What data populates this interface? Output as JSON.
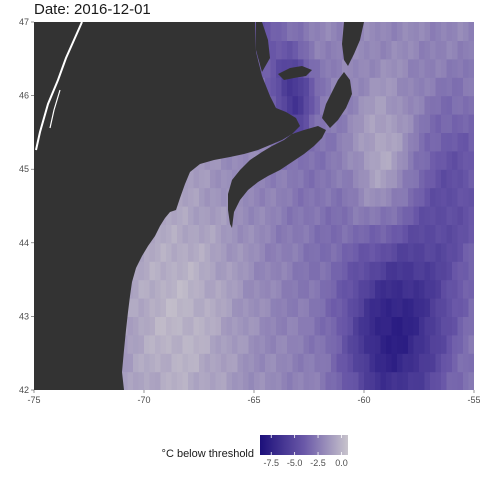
{
  "title": "Date: 2016-12-01",
  "legend": {
    "title": "°C below threshold",
    "ticks": [
      "-7.5",
      "-5.0",
      "-2.5",
      "0.0"
    ],
    "tick_values": [
      -7.5,
      -5.0,
      -2.5,
      0.0
    ],
    "range": [
      -8.7,
      0.7
    ],
    "colors": {
      "low": "#1c0f7a",
      "mid": "#6a58a8",
      "high": "#c8c4cc"
    }
  },
  "colors": {
    "land": "#333333",
    "water_gap": "#ffffff",
    "nodata": "#eeeeee"
  },
  "chart_data": {
    "type": "heatmap",
    "title": "Date: 2016-12-01",
    "xlabel": "",
    "ylabel": "",
    "xlim": [
      -75,
      -55
    ],
    "ylim": [
      42,
      47
    ],
    "x_ticks": [
      "-75",
      "-70",
      "-65",
      "-60",
      "-55"
    ],
    "x_tick_values": [
      -75,
      -70,
      -65,
      -60,
      -55
    ],
    "y_ticks": [
      "42",
      "43",
      "44",
      "45",
      "46",
      "47"
    ],
    "y_tick_values": [
      42,
      43,
      44,
      45,
      46,
      47
    ],
    "value_label": "°C below threshold",
    "grid_resolution_deg": [
      0.25,
      0.25
    ],
    "field_features": [
      {
        "lon": -57.8,
        "lat": 42.9,
        "value": -6.5,
        "spread_deg": 1.5
      },
      {
        "lon": -59.5,
        "lat": 42.6,
        "value": -5.0,
        "spread_deg": 1.2
      },
      {
        "lon": -55.8,
        "lat": 44.8,
        "value": -4.5,
        "spread_deg": 1.3
      },
      {
        "lon": -61.5,
        "lat": 44.3,
        "value": -3.0,
        "spread_deg": 2.0
      },
      {
        "lon": -63.2,
        "lat": 46.0,
        "value": -6.5,
        "spread_deg": 0.6
      },
      {
        "lon": -64.5,
        "lat": 46.8,
        "value": -4.2,
        "spread_deg": 0.7
      },
      {
        "lon": -59.2,
        "lat": 45.1,
        "value": 0.5,
        "spread_deg": 1.0
      },
      {
        "lon": -68.5,
        "lat": 43.0,
        "value": 0.3,
        "spread_deg": 2.0
      }
    ],
    "field_base_value": -1.9
  }
}
